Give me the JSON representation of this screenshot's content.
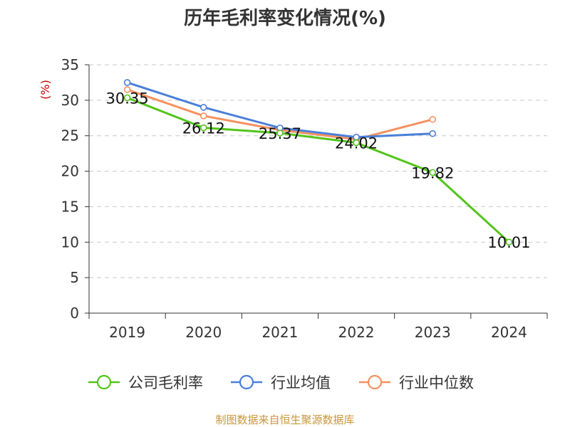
{
  "chart_data": {
    "type": "line",
    "title": "历年毛利率变化情况(%)",
    "ylabel": "(%)",
    "xlabel": "",
    "categories": [
      "2019",
      "2020",
      "2021",
      "2022",
      "2023",
      "2024"
    ],
    "ylim": [
      0,
      35
    ],
    "yticks": [
      0,
      5,
      10,
      15,
      20,
      25,
      30,
      35
    ],
    "grid": "horizontal-dashed",
    "legend_position": "bottom",
    "series": [
      {
        "name": "公司毛利率",
        "color": "#52c41a",
        "values": [
          30.35,
          26.12,
          25.37,
          24.02,
          19.82,
          10.01
        ],
        "data_labels": [
          "30.35",
          "26.12",
          "25.37",
          "24.02",
          "19.82",
          "10.01"
        ]
      },
      {
        "name": "行业均值",
        "color": "#4a7fd9",
        "values": [
          32.5,
          29.0,
          26.1,
          24.8,
          25.3,
          null
        ]
      },
      {
        "name": "行业中位数",
        "color": "#f59160",
        "values": [
          31.5,
          27.8,
          25.8,
          24.5,
          27.3,
          null
        ]
      }
    ]
  },
  "source": "制图数据来自恒生聚源数据库"
}
